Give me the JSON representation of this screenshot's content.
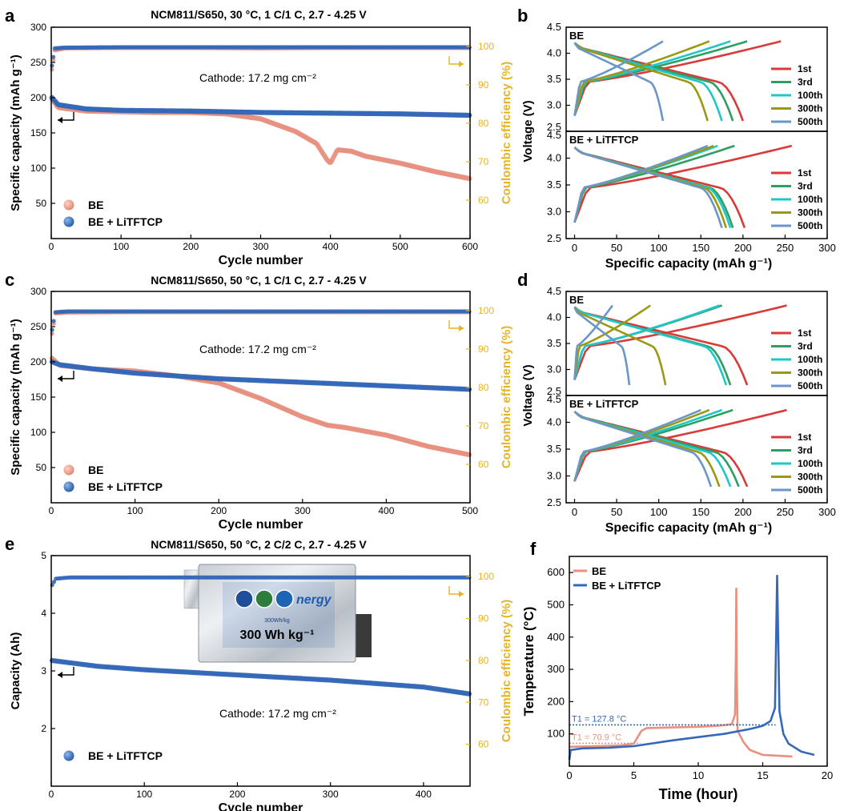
{
  "colors": {
    "be": "#E8917F",
    "be_litftcp": "#3568B8",
    "be_litftcp_dark": "#2459A6",
    "ce_axis": "#E6B422",
    "axis": "#000000",
    "curve_1st": "#D93A3A",
    "curve_3rd": "#2E9E63",
    "curve_100th": "#1FC7C9",
    "curve_300th": "#9A9A12",
    "curve_500th": "#6A96C8"
  },
  "panels": {
    "a": {
      "letter": "a",
      "title": "NCM811/S650, 30 °C, 1 C/1 C, 2.7 - 4.25 V",
      "annotation": "Cathode: 17.2 mg cm⁻²"
    },
    "b": {
      "letter": "b"
    },
    "c": {
      "letter": "c",
      "title": "NCM811/S650, 50 °C, 1 C/1 C, 2.7 - 4.25 V",
      "annotation": "Cathode: 17.2 mg cm⁻²"
    },
    "d": {
      "letter": "d"
    },
    "e": {
      "letter": "e",
      "title": "NCM811/S650, 50 °C, 2 C/2 C,  2.7 - 4.25 V",
      "annotation": "Cathode: 17.2 mg cm⁻²",
      "cell_label": "300 Wh kg⁻¹",
      "cell_small_label": "300Wh/kg"
    },
    "f": {
      "letter": "f"
    }
  },
  "chart_data": [
    {
      "panel": "a",
      "type": "scatter",
      "xlabel": "Cycle number",
      "ylabel": "Specific capacity (mAh g⁻¹)",
      "y2label": "Coulombic efficiency (%)",
      "xlim": [
        0,
        600
      ],
      "ylim": [
        0,
        300
      ],
      "y2lim": [
        50,
        105
      ],
      "xticks": [
        0,
        100,
        200,
        300,
        400,
        500,
        600
      ],
      "yticks": [
        50,
        100,
        150,
        200,
        250,
        300
      ],
      "y2ticks": [
        60,
        70,
        80,
        90,
        100
      ],
      "series": [
        {
          "name": "BE",
          "role": "capacity",
          "color": "#E8917F",
          "points": [
            [
              1,
              198
            ],
            [
              10,
              186
            ],
            [
              50,
              181
            ],
            [
              100,
              180
            ],
            [
              150,
              179
            ],
            [
              200,
              179
            ],
            [
              250,
              177
            ],
            [
              300,
              170
            ],
            [
              350,
              152
            ],
            [
              380,
              135
            ],
            [
              395,
              112
            ],
            [
              400,
              107
            ],
            [
              410,
              126
            ],
            [
              430,
              124
            ],
            [
              450,
              117
            ],
            [
              500,
              107
            ],
            [
              550,
              95
            ],
            [
              600,
              85
            ]
          ]
        },
        {
          "name": "BE + LiTFTCP",
          "role": "capacity",
          "color": "#3568B8",
          "points": [
            [
              1,
              200
            ],
            [
              10,
              190
            ],
            [
              50,
              184
            ],
            [
              100,
              182
            ],
            [
              200,
              181
            ],
            [
              300,
              179
            ],
            [
              400,
              178
            ],
            [
              500,
              177
            ],
            [
              600,
              175
            ]
          ]
        },
        {
          "name": "BE",
          "role": "ce",
          "color": "#E8917F",
          "points": [
            [
              1,
              94
            ],
            [
              5,
              99
            ],
            [
              20,
              99.5
            ],
            [
              100,
              99.6
            ],
            [
              200,
              99.6
            ],
            [
              300,
              99.5
            ],
            [
              400,
              99.6
            ],
            [
              500,
              99.6
            ],
            [
              600,
              99.6
            ]
          ]
        },
        {
          "name": "BE + LiTFTCP",
          "role": "ce",
          "color": "#3568B8",
          "points": [
            [
              1,
              95
            ],
            [
              5,
              99.5
            ],
            [
              20,
              99.7
            ],
            [
              100,
              99.8
            ],
            [
              300,
              99.8
            ],
            [
              600,
              99.8
            ]
          ]
        }
      ]
    },
    {
      "panel": "c",
      "type": "scatter",
      "xlabel": "Cycle number",
      "ylabel": "Specific capacity (mAh g⁻¹)",
      "y2label": "Coulombic efficiency (%)",
      "xlim": [
        0,
        500
      ],
      "ylim": [
        0,
        300
      ],
      "y2lim": [
        50,
        105
      ],
      "xticks": [
        0,
        100,
        200,
        300,
        400,
        500
      ],
      "yticks": [
        50,
        100,
        150,
        200,
        250,
        300
      ],
      "y2ticks": [
        60,
        70,
        80,
        90,
        100
      ],
      "series": [
        {
          "name": "BE",
          "role": "capacity",
          "color": "#E8917F",
          "points": [
            [
              1,
              205
            ],
            [
              10,
              195
            ],
            [
              50,
              190
            ],
            [
              100,
              187
            ],
            [
              150,
              180
            ],
            [
              200,
              170
            ],
            [
              250,
              148
            ],
            [
              300,
              122
            ],
            [
              330,
              110
            ],
            [
              350,
              107
            ],
            [
              400,
              96
            ],
            [
              450,
              80
            ],
            [
              500,
              68
            ]
          ]
        },
        {
          "name": "BE + LiTFTCP",
          "role": "capacity",
          "color": "#3568B8",
          "points": [
            [
              1,
              200
            ],
            [
              10,
              196
            ],
            [
              50,
              190
            ],
            [
              100,
              184
            ],
            [
              200,
              176
            ],
            [
              300,
              171
            ],
            [
              400,
              166
            ],
            [
              500,
              161
            ]
          ]
        },
        {
          "name": "BE",
          "role": "ce",
          "color": "#E8917F",
          "points": [
            [
              1,
              94
            ],
            [
              5,
              99.3
            ],
            [
              20,
              99.5
            ],
            [
              100,
              99.6
            ],
            [
              300,
              99.6
            ],
            [
              500,
              99.6
            ]
          ]
        },
        {
          "name": "BE + LiTFTCP",
          "role": "ce",
          "color": "#3568B8",
          "points": [
            [
              1,
              95
            ],
            [
              5,
              99.6
            ],
            [
              20,
              99.8
            ],
            [
              100,
              99.8
            ],
            [
              500,
              99.8
            ]
          ]
        }
      ]
    },
    {
      "panel": "e",
      "type": "scatter",
      "xlabel": "Cycle number",
      "ylabel": "Capacity (Ah)",
      "y2label": "Coulombic efficiency (%)",
      "xlim": [
        0,
        450
      ],
      "ylim": [
        1,
        5
      ],
      "y2lim": [
        50,
        105
      ],
      "xticks": [
        0,
        100,
        200,
        300,
        400
      ],
      "yticks": [
        2,
        3,
        4,
        5
      ],
      "y2ticks": [
        60,
        70,
        80,
        90,
        100
      ],
      "series": [
        {
          "name": "BE + LiTFTCP",
          "role": "capacity",
          "color": "#3568B8",
          "points": [
            [
              1,
              3.18
            ],
            [
              50,
              3.08
            ],
            [
              100,
              3.02
            ],
            [
              200,
              2.93
            ],
            [
              300,
              2.84
            ],
            [
              400,
              2.72
            ],
            [
              450,
              2.6
            ]
          ]
        },
        {
          "name": "BE + LiTFTCP",
          "role": "ce",
          "color": "#3568B8",
          "points": [
            [
              1,
              98
            ],
            [
              5,
              99.5
            ],
            [
              20,
              99.8
            ],
            [
              100,
              99.8
            ],
            [
              450,
              99.8
            ]
          ]
        }
      ]
    },
    {
      "panel": "b",
      "type": "line",
      "xlabel": "Specific capacity (mAh g⁻¹)",
      "ylabel": "Voltage (V)",
      "xlim": [
        -10,
        300
      ],
      "xticks": [
        0,
        50,
        100,
        150,
        200,
        250,
        300
      ],
      "subplots": [
        {
          "label": "BE",
          "ylim": [
            2.5,
            4.5
          ],
          "yticks": [
            2.5,
            3.0,
            3.5,
            4.0,
            4.5
          ],
          "legend": [
            "1st",
            "3rd",
            "100th",
            "300th",
            "500th"
          ],
          "curves": [
            {
              "name": "1st",
              "charge": 245,
              "discharge": 200,
              "v_end": 2.7
            },
            {
              "name": "3rd",
              "charge": 205,
              "discharge": 188,
              "v_end": 2.7
            },
            {
              "name": "100th",
              "charge": 185,
              "discharge": 175,
              "v_end": 2.7
            },
            {
              "name": "300th",
              "charge": 160,
              "discharge": 158,
              "v_end": 2.7
            },
            {
              "name": "500th",
              "charge": 105,
              "discharge": 105,
              "v_end": 2.7
            }
          ]
        },
        {
          "label": "BE + LiTFTCP",
          "ylim": [
            2.5,
            4.5
          ],
          "yticks": [
            2.5,
            3.0,
            3.5,
            4.0,
            4.5
          ],
          "legend": [
            "1st",
            "3rd",
            "100th",
            "300th",
            "500th"
          ],
          "curves": [
            {
              "name": "1st",
              "charge": 258,
              "discharge": 202,
              "v_end": 2.7
            },
            {
              "name": "3rd",
              "charge": 190,
              "discharge": 188,
              "v_end": 2.7
            },
            {
              "name": "100th",
              "charge": 170,
              "discharge": 185,
              "v_end": 2.7
            },
            {
              "name": "300th",
              "charge": 165,
              "discharge": 180,
              "v_end": 2.7
            },
            {
              "name": "500th",
              "charge": 158,
              "discharge": 175,
              "v_end": 2.7
            }
          ]
        }
      ]
    },
    {
      "panel": "d",
      "type": "line",
      "xlabel": "Specific capacity (mAh g⁻¹)",
      "ylabel": "Voltage (V)",
      "xlim": [
        -10,
        300
      ],
      "xticks": [
        0,
        50,
        100,
        150,
        200,
        250,
        300
      ],
      "subplots": [
        {
          "label": "BE",
          "ylim": [
            2.5,
            4.5
          ],
          "yticks": [
            2.5,
            3.0,
            3.5,
            4.0,
            4.5
          ],
          "legend": [
            "1st",
            "3rd",
            "100th",
            "300th",
            "500th"
          ],
          "curves": [
            {
              "name": "1st",
              "charge": 252,
              "discharge": 205,
              "v_end": 2.7
            },
            {
              "name": "3rd",
              "charge": 175,
              "discharge": 185,
              "v_end": 2.7
            },
            {
              "name": "100th",
              "charge": 172,
              "discharge": 180,
              "v_end": 2.7
            },
            {
              "name": "300th",
              "charge": 90,
              "discharge": 108,
              "v_end": 2.7
            },
            {
              "name": "500th",
              "charge": 45,
              "discharge": 65,
              "v_end": 2.7
            }
          ]
        },
        {
          "label": "BE + LiTFTCP",
          "ylim": [
            2.5,
            4.5
          ],
          "yticks": [
            2.5,
            3.0,
            3.5,
            4.0,
            4.5
          ],
          "legend": [
            "1st",
            "3rd",
            "100th",
            "300th",
            "500th"
          ],
          "curves": [
            {
              "name": "1st",
              "charge": 252,
              "discharge": 205,
              "v_end": 2.8
            },
            {
              "name": "3rd",
              "charge": 188,
              "discharge": 195,
              "v_end": 2.8
            },
            {
              "name": "100th",
              "charge": 175,
              "discharge": 185,
              "v_end": 2.8
            },
            {
              "name": "300th",
              "charge": 160,
              "discharge": 172,
              "v_end": 2.8
            },
            {
              "name": "500th",
              "charge": 150,
              "discharge": 162,
              "v_end": 2.8
            }
          ]
        }
      ]
    },
    {
      "panel": "f",
      "type": "line",
      "xlabel": "Time (hour)",
      "ylabel": "Temperature (°C)",
      "xlim": [
        0,
        20
      ],
      "ylim": [
        0,
        650
      ],
      "xticks": [
        0,
        5,
        10,
        15,
        20
      ],
      "yticks": [
        100,
        200,
        300,
        400,
        500,
        600
      ],
      "annotations": [
        "T1 = 127.8 °C",
        "T1 = 70.9 °C"
      ],
      "series": [
        {
          "name": "BE",
          "color": "#E8917F",
          "points": [
            [
              0,
              60
            ],
            [
              2,
              62
            ],
            [
              4,
              64
            ],
            [
              5,
              70
            ],
            [
              5.6,
              110
            ],
            [
              6,
              118
            ],
            [
              8,
              120
            ],
            [
              10,
              122
            ],
            [
              11,
              124
            ],
            [
              12,
              127
            ],
            [
              12.6,
              130
            ],
            [
              12.85,
              160
            ],
            [
              12.92,
              350
            ],
            [
              12.95,
              550
            ],
            [
              12.98,
              300
            ],
            [
              13.05,
              110
            ],
            [
              13.5,
              75
            ],
            [
              14,
              50
            ],
            [
              15,
              35
            ],
            [
              17.3,
              30
            ]
          ]
        },
        {
          "name": "BE + LiTFTCP",
          "color": "#3568B8",
          "points": [
            [
              0,
              20
            ],
            [
              0.1,
              50
            ],
            [
              1,
              55
            ],
            [
              3,
              57
            ],
            [
              5,
              62
            ],
            [
              8,
              80
            ],
            [
              10,
              90
            ],
            [
              12,
              100
            ],
            [
              14,
              115
            ],
            [
              15,
              125
            ],
            [
              15.6,
              140
            ],
            [
              15.95,
              180
            ],
            [
              16.05,
              420
            ],
            [
              16.12,
              590
            ],
            [
              16.2,
              400
            ],
            [
              16.3,
              170
            ],
            [
              16.6,
              100
            ],
            [
              17,
              70
            ],
            [
              18,
              45
            ],
            [
              19,
              35
            ]
          ]
        }
      ]
    }
  ]
}
